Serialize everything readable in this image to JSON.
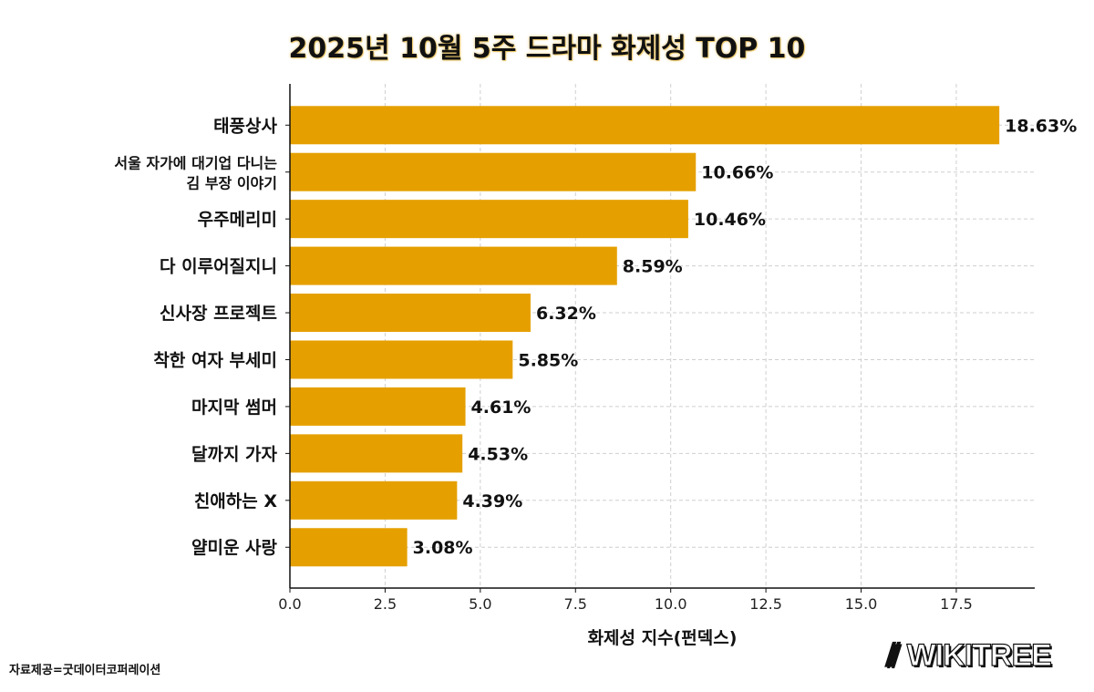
{
  "chart_data": {
    "type": "bar",
    "orientation": "horizontal",
    "title": "2025년 10월 5주 드라마 화제성 TOP 10",
    "xlabel": "화제성 지수(펀덱스)",
    "ylabel": "",
    "categories": [
      "태풍상사",
      "서울 자가에 대기업 다니는\n김 부장 이야기",
      "우주메리미",
      "다 이루어질지니",
      "신사장 프로젝트",
      "착한 여자 부세미",
      "마지막 썸머",
      "달까지 가자",
      "친애하는 X",
      "얄미운 사랑"
    ],
    "values": [
      18.63,
      10.66,
      10.46,
      8.59,
      6.32,
      5.85,
      4.61,
      4.53,
      4.39,
      3.08
    ],
    "data_labels": [
      "18.63%",
      "10.66%",
      "10.46%",
      "8.59%",
      "6.32%",
      "5.85%",
      "4.61%",
      "4.53%",
      "4.39%",
      "3.08%"
    ],
    "xticks": [
      "0.0",
      "2.5",
      "5.0",
      "7.5",
      "10.0",
      "12.5",
      "15.0",
      "17.5"
    ],
    "xlim": [
      0,
      19.56
    ],
    "grid": true,
    "bar_color": "#E5A000"
  },
  "footer": {
    "source": "자료제공=굿데이터코퍼레이션",
    "logo": "WIKITREE"
  }
}
